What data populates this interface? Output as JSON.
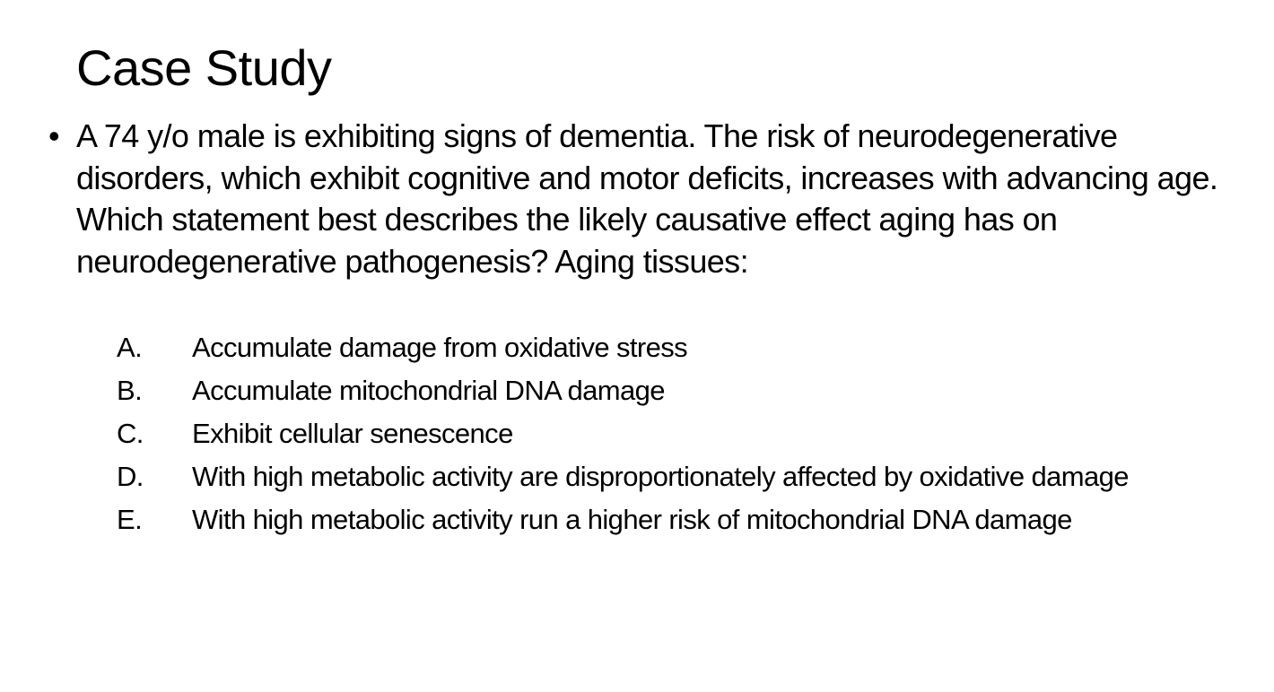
{
  "slide": {
    "title": "Case Study",
    "bullet": "•",
    "question": "A 74 y/o male is exhibiting signs of dementia. The risk of neurodegenerative disorders, which exhibit cognitive and motor deficits, increases with advancing age. Which statement best describes the likely causative effect aging has on neurodegenerative pathogenesis? Aging tissues:",
    "options": [
      {
        "letter": "A.",
        "text": "Accumulate damage from oxidative stress"
      },
      {
        "letter": "B.",
        "text": "Accumulate mitochondrial DNA damage"
      },
      {
        "letter": "C.",
        "text": "Exhibit cellular senescence"
      },
      {
        "letter": "D.",
        "text": "With high metabolic activity are disproportionately affected by oxidative damage"
      },
      {
        "letter": "E.",
        "text": "With high metabolic activity run a higher risk of mitochondrial DNA damage"
      }
    ]
  }
}
